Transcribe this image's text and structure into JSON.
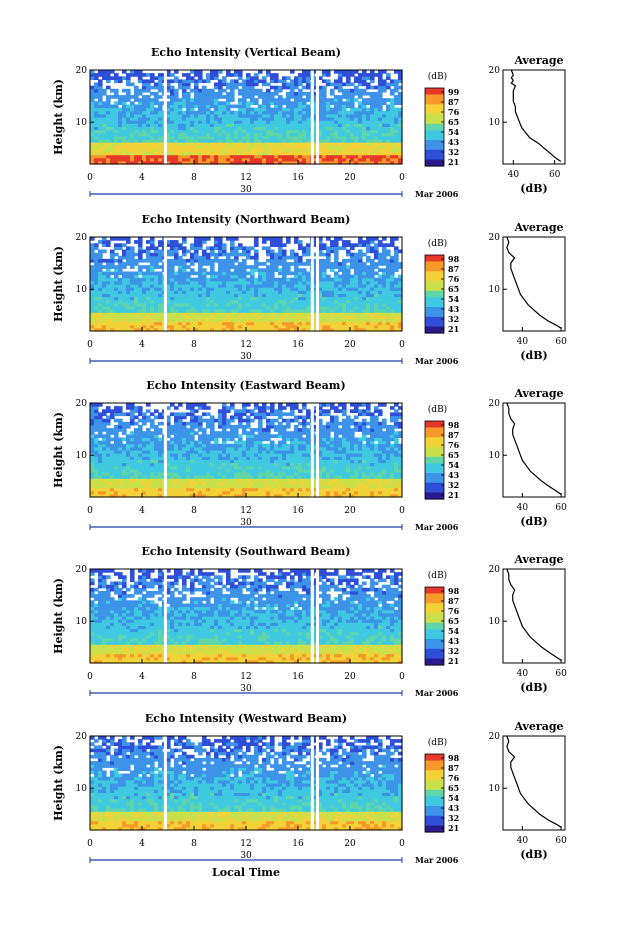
{
  "chart_data": [
    {
      "type": "heatmap",
      "title": "Echo Intensity (Vertical Beam)",
      "ylabel": "Height (km)",
      "xticks": [
        "0",
        "4",
        "8",
        "12",
        "16",
        "20",
        "0"
      ],
      "yticks": [
        "10",
        "20"
      ],
      "ylim": [
        2,
        20
      ],
      "xlim": [
        0,
        24
      ],
      "date_label": "30",
      "month_label": "Mar 2006",
      "gaps_hours": [
        5.8,
        17.1,
        17.5
      ],
      "colorbar": {
        "unit": "(dB)",
        "levels": [
          "99",
          "87",
          "76",
          "65",
          "54",
          "43",
          "32",
          "21"
        ]
      },
      "profile": {
        "title": "Average",
        "xlabel": "(dB)",
        "xticks": [
          "40",
          "60"
        ],
        "yticks": [
          "10",
          "20"
        ],
        "xlim": [
          35,
          65
        ],
        "height_km": [
          2.5,
          3,
          4,
          5,
          6,
          7,
          8,
          9,
          10,
          11,
          12,
          13,
          14,
          15,
          16,
          17,
          17.5,
          18,
          18.5,
          19,
          20
        ],
        "db": [
          63,
          61,
          58,
          55,
          52,
          48,
          46,
          44,
          43,
          42,
          41,
          41,
          40,
          40,
          40,
          41,
          39,
          40,
          39,
          40,
          39
        ]
      }
    },
    {
      "type": "heatmap",
      "title": "Echo Intensity (Northward Beam)",
      "ylabel": "Height (km)",
      "xticks": [
        "0",
        "4",
        "8",
        "12",
        "16",
        "20",
        "0"
      ],
      "yticks": [
        "10",
        "20"
      ],
      "ylim": [
        2,
        20
      ],
      "xlim": [
        0,
        24
      ],
      "date_label": "30",
      "month_label": "Mar 2006",
      "gaps_hours": [
        5.8,
        17.1,
        17.5
      ],
      "colorbar": {
        "unit": "(dB)",
        "levels": [
          "98",
          "87",
          "76",
          "65",
          "54",
          "43",
          "32",
          "21"
        ]
      },
      "profile": {
        "title": "Average",
        "xlabel": "(dB)",
        "xticks": [
          "40",
          "60"
        ],
        "yticks": [
          "10",
          "20"
        ],
        "xlim": [
          30,
          62
        ],
        "height_km": [
          2.5,
          3,
          4,
          5,
          6,
          7,
          8,
          9,
          10,
          11,
          12,
          13,
          14,
          15,
          16,
          17,
          18,
          19,
          20
        ],
        "db": [
          60,
          58,
          53,
          49,
          46,
          43,
          41,
          39,
          38,
          37,
          36,
          35,
          34,
          34,
          36,
          33,
          32,
          33,
          32
        ]
      }
    },
    {
      "type": "heatmap",
      "title": "Echo Intensity (Eastward Beam)",
      "ylabel": "Height (km)",
      "xticks": [
        "0",
        "4",
        "8",
        "12",
        "16",
        "20",
        "0"
      ],
      "yticks": [
        "10",
        "20"
      ],
      "ylim": [
        2,
        20
      ],
      "xlim": [
        0,
        24
      ],
      "date_label": "30",
      "month_label": "Mar 2006",
      "gaps_hours": [
        5.8,
        17.1,
        17.5
      ],
      "colorbar": {
        "unit": "(dB)",
        "levels": [
          "98",
          "87",
          "76",
          "65",
          "54",
          "43",
          "32",
          "21"
        ]
      },
      "profile": {
        "title": "Average",
        "xlabel": "(dB)",
        "xticks": [
          "40",
          "60"
        ],
        "yticks": [
          "10",
          "20"
        ],
        "xlim": [
          30,
          62
        ],
        "height_km": [
          2.5,
          3,
          4,
          5,
          6,
          7,
          8,
          9,
          10,
          11,
          12,
          13,
          14,
          15,
          16,
          17,
          18,
          19,
          20
        ],
        "db": [
          60,
          58,
          54,
          50,
          47,
          44,
          42,
          40,
          39,
          38,
          37,
          36,
          35,
          35,
          36,
          34,
          33,
          33,
          32
        ]
      }
    },
    {
      "type": "heatmap",
      "title": "Echo Intensity (Southward Beam)",
      "ylabel": "Height (km)",
      "xticks": [
        "0",
        "4",
        "8",
        "12",
        "16",
        "20",
        "0"
      ],
      "yticks": [
        "10",
        "20"
      ],
      "ylim": [
        2,
        20
      ],
      "xlim": [
        0,
        24
      ],
      "date_label": "30",
      "month_label": "Mar 2006",
      "gaps_hours": [
        5.8,
        17.1,
        17.5
      ],
      "colorbar": {
        "unit": "(dB)",
        "levels": [
          "98",
          "87",
          "76",
          "65",
          "54",
          "43",
          "32",
          "21"
        ]
      },
      "profile": {
        "title": "Average",
        "xlabel": "(dB)",
        "xticks": [
          "40",
          "60"
        ],
        "yticks": [
          "10",
          "20"
        ],
        "xlim": [
          30,
          62
        ],
        "height_km": [
          2.5,
          3,
          4,
          5,
          6,
          7,
          8,
          9,
          10,
          11,
          12,
          13,
          14,
          15,
          16,
          17,
          18,
          19,
          20
        ],
        "db": [
          60,
          58,
          54,
          50,
          47,
          44,
          42,
          40,
          39,
          38,
          37,
          36,
          35,
          35,
          36,
          34,
          33,
          33,
          32
        ]
      }
    },
    {
      "type": "heatmap",
      "title": "Echo Intensity (Westward Beam)",
      "ylabel": "Height (km)",
      "xlabel": "Local Time",
      "xticks": [
        "0",
        "4",
        "8",
        "12",
        "16",
        "20",
        "0"
      ],
      "yticks": [
        "10",
        "20"
      ],
      "ylim": [
        2,
        20
      ],
      "xlim": [
        0,
        24
      ],
      "date_label": "30",
      "month_label": "Mar 2006",
      "gaps_hours": [
        5.8,
        17.1,
        17.5
      ],
      "colorbar": {
        "unit": "(dB)",
        "levels": [
          "98",
          "87",
          "76",
          "65",
          "54",
          "43",
          "32",
          "21"
        ]
      },
      "profile": {
        "title": "Average",
        "xlabel": "(dB)",
        "xticks": [
          "40",
          "60"
        ],
        "yticks": [
          "10",
          "20"
        ],
        "xlim": [
          30,
          62
        ],
        "height_km": [
          2.5,
          3,
          4,
          5,
          6,
          7,
          8,
          9,
          10,
          11,
          12,
          13,
          14,
          15,
          16,
          17,
          18,
          19,
          20
        ],
        "db": [
          60,
          58,
          53,
          49,
          46,
          43,
          41,
          39,
          38,
          37,
          36,
          35,
          34,
          34,
          36,
          33,
          32,
          33,
          32
        ]
      }
    }
  ],
  "colors": {
    "scale": [
      "#2a1a8c",
      "#2f4fd8",
      "#3d93e8",
      "#3fc9e0",
      "#5fd5a8",
      "#c9e04a",
      "#f2d236",
      "#f79a2a",
      "#e8382a"
    ]
  }
}
